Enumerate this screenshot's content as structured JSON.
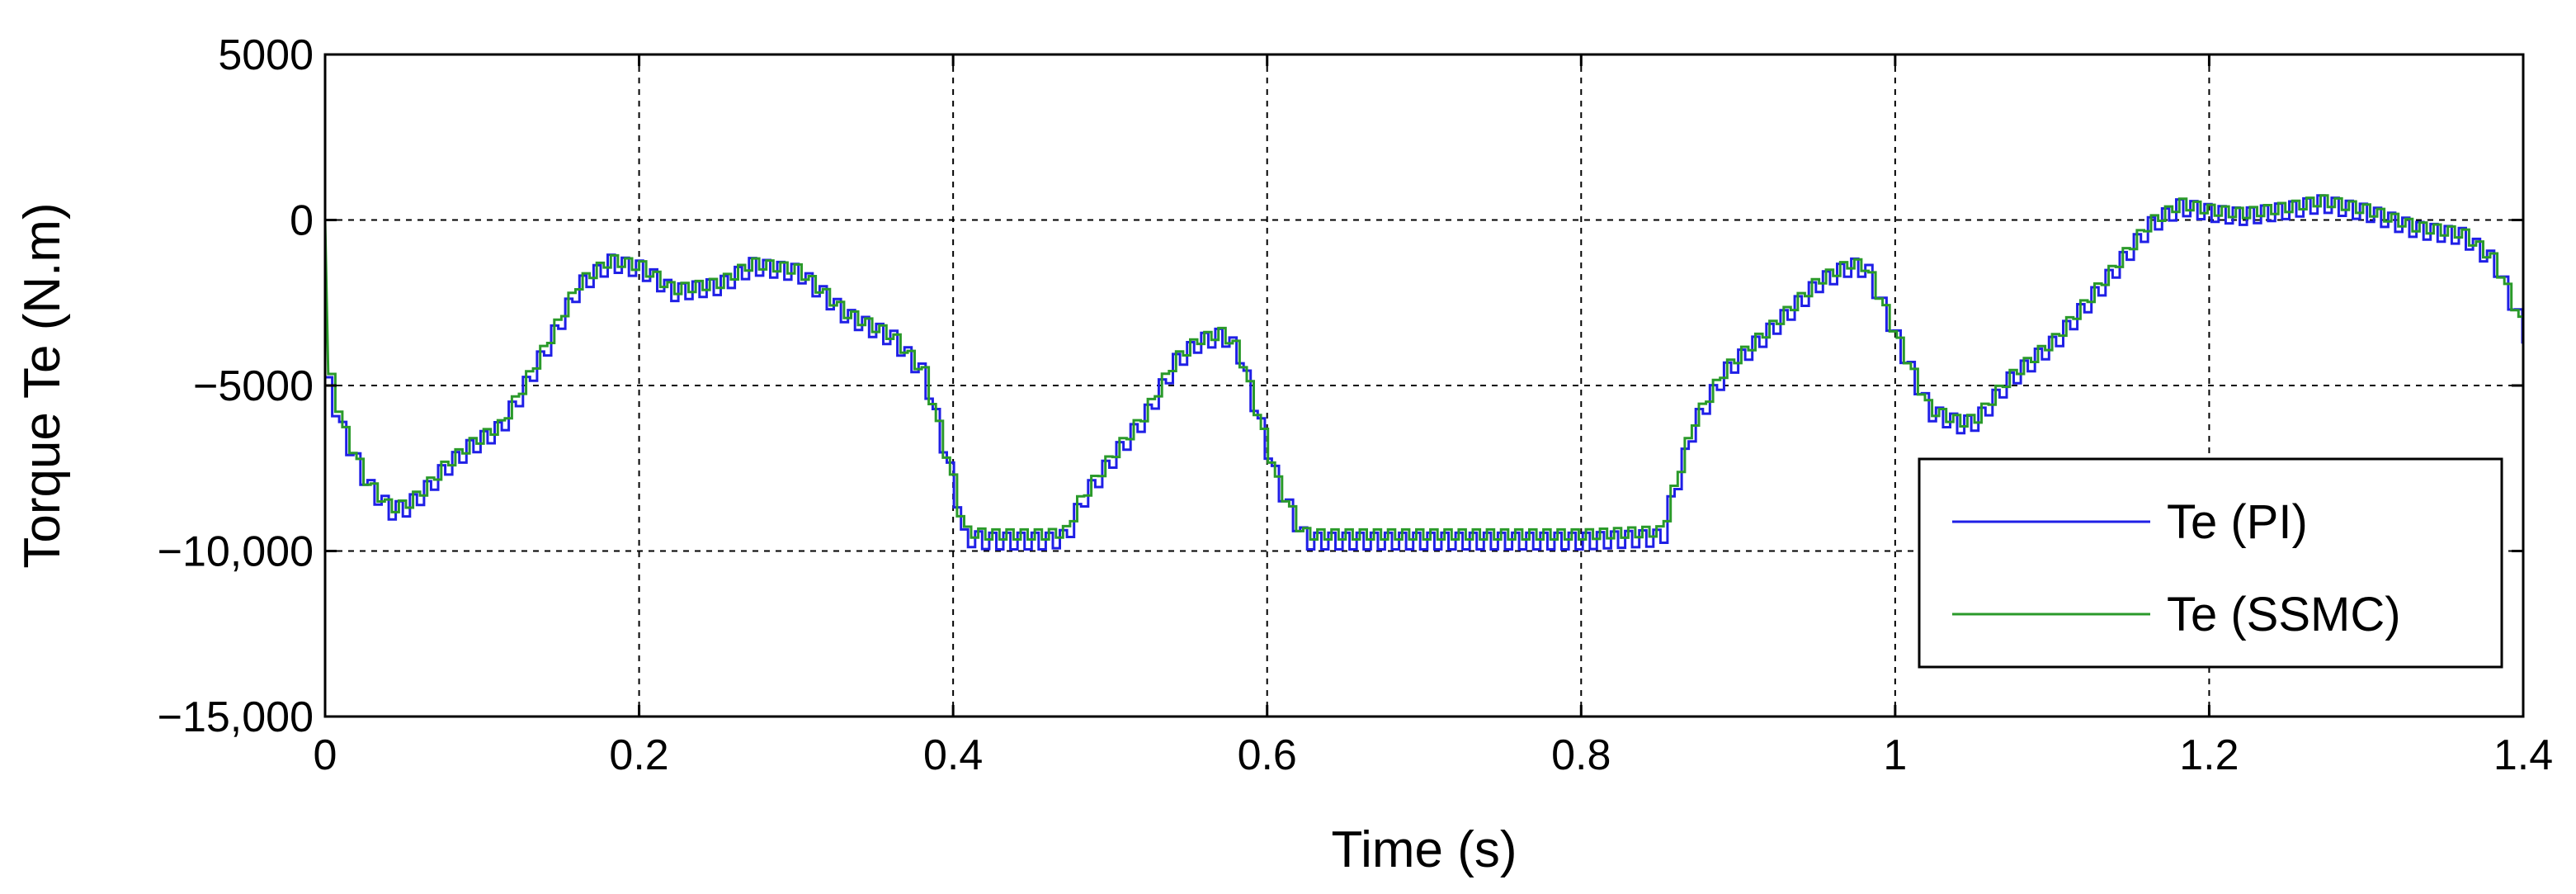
{
  "chart_data": {
    "type": "line",
    "title": "",
    "xlabel": "Time (s)",
    "ylabel": "Torque Te (N.m)",
    "xlim": [
      0,
      1.4
    ],
    "ylim": [
      -15000,
      5000
    ],
    "xticks": [
      0,
      0.2,
      0.4,
      0.6,
      0.8,
      1,
      1.2,
      1.4
    ],
    "xtick_labels": [
      "0",
      "0.2",
      "0.4",
      "0.6",
      "0.8",
      "1",
      "1.2",
      "1.4"
    ],
    "yticks": [
      5000,
      0,
      -5000,
      -10000,
      -15000
    ],
    "ytick_labels": [
      "5000",
      "0",
      "−5000",
      "−10,000",
      "−15,000"
    ],
    "grid": true,
    "legend_position": "bottom-right",
    "series": [
      {
        "name": "Te (PI)",
        "color": "#1f1fe6",
        "ripple": 250,
        "x": [
          0,
          0.01,
          0.025,
          0.04,
          0.05,
          0.06,
          0.075,
          0.09,
          0.11,
          0.12,
          0.14,
          0.16,
          0.18,
          0.2,
          0.22,
          0.25,
          0.27,
          0.3,
          0.33,
          0.36,
          0.38,
          0.4,
          0.405,
          0.42,
          0.44,
          0.46,
          0.47,
          0.48,
          0.5,
          0.52,
          0.54,
          0.555,
          0.57,
          0.58,
          0.59,
          0.605,
          0.62,
          0.625,
          0.65,
          0.7,
          0.75,
          0.8,
          0.85,
          0.855,
          0.87,
          0.89,
          0.92,
          0.95,
          0.97,
          0.98,
          1.0,
          1.02,
          1.04,
          1.05,
          1.07,
          1.1,
          1.13,
          1.16,
          1.18,
          1.2,
          1.22,
          1.25,
          1.27,
          1.3,
          1.33,
          1.36,
          1.38,
          1.4
        ],
        "y": [
          -5000,
          -6500,
          -8000,
          -8800,
          -8700,
          -8300,
          -7500,
          -6900,
          -6300,
          -5500,
          -3800,
          -2000,
          -1300,
          -1500,
          -2200,
          -2000,
          -1400,
          -1600,
          -2900,
          -3600,
          -4700,
          -8300,
          -9600,
          -9700,
          -9700,
          -9700,
          -9600,
          -8500,
          -7200,
          -6000,
          -4300,
          -3700,
          -3500,
          -4000,
          -5600,
          -8000,
          -9500,
          -9700,
          -9700,
          -9700,
          -9700,
          -9700,
          -9600,
          -8600,
          -6200,
          -4600,
          -3300,
          -1900,
          -1400,
          -1500,
          -3700,
          -5800,
          -6200,
          -6100,
          -4900,
          -3700,
          -2000,
          -200,
          400,
          200,
          100,
          300,
          500,
          200,
          -300,
          -500,
          -1300,
          -3500
        ]
      },
      {
        "name": "Te (SSMC)",
        "color": "#2a9a2a",
        "ripple": 150,
        "x": [
          0,
          0.002,
          0.01,
          0.025,
          0.04,
          0.05,
          0.06,
          0.075,
          0.09,
          0.11,
          0.12,
          0.14,
          0.16,
          0.18,
          0.2,
          0.22,
          0.25,
          0.27,
          0.3,
          0.33,
          0.36,
          0.38,
          0.4,
          0.405,
          0.42,
          0.44,
          0.46,
          0.47,
          0.48,
          0.5,
          0.52,
          0.54,
          0.555,
          0.57,
          0.58,
          0.59,
          0.605,
          0.62,
          0.625,
          0.65,
          0.7,
          0.75,
          0.8,
          0.85,
          0.855,
          0.87,
          0.89,
          0.92,
          0.95,
          0.97,
          0.98,
          1.0,
          1.02,
          1.04,
          1.05,
          1.07,
          1.1,
          1.13,
          1.16,
          1.18,
          1.2,
          1.22,
          1.25,
          1.27,
          1.3,
          1.33,
          1.36,
          1.38,
          1.4
        ],
        "y": [
          0,
          -4800,
          -6300,
          -7900,
          -8700,
          -8600,
          -8200,
          -7400,
          -6800,
          -6200,
          -5400,
          -3700,
          -1900,
          -1200,
          -1400,
          -2100,
          -1900,
          -1300,
          -1500,
          -2800,
          -3500,
          -4600,
          -8200,
          -9400,
          -9500,
          -9500,
          -9500,
          -9400,
          -8400,
          -7100,
          -5900,
          -4200,
          -3600,
          -3400,
          -3900,
          -5500,
          -7900,
          -9400,
          -9500,
          -9500,
          -9500,
          -9500,
          -9500,
          -9400,
          -8500,
          -6100,
          -4500,
          -3200,
          -1800,
          -1300,
          -1400,
          -3600,
          -5700,
          -6100,
          -6000,
          -4800,
          -3600,
          -1900,
          -100,
          500,
          300,
          200,
          400,
          600,
          300,
          -200,
          -400,
          -1200,
          -3400
        ]
      }
    ]
  }
}
